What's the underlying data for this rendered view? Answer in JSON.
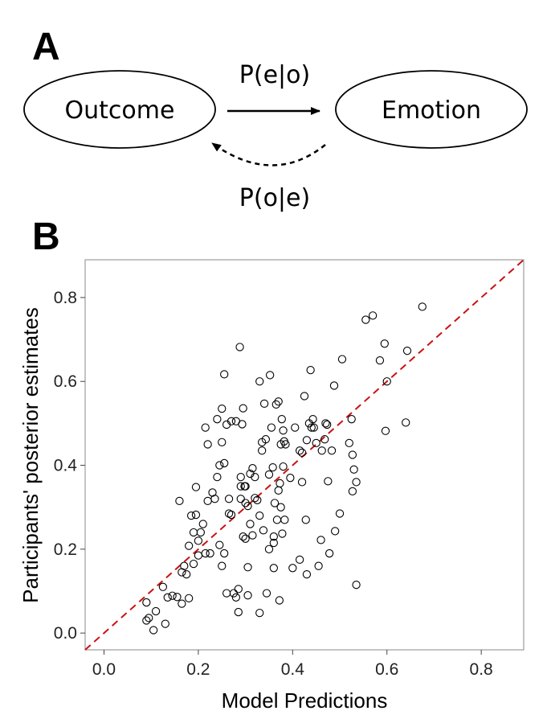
{
  "panel_a": {
    "letter": "A",
    "nodes": {
      "outcome": "Outcome",
      "emotion": "Emotion"
    },
    "edges": {
      "forward": "P(e|o)",
      "backward": "P(o|e)"
    }
  },
  "panel_b": {
    "letter": "B"
  },
  "colors": {
    "ideal_line": "#cc1111",
    "points": "#000000",
    "frame": "#888888"
  },
  "chart_data": {
    "type": "scatter",
    "title": "",
    "xlabel": "Model Predictions",
    "ylabel": "Participants' posterior estimates",
    "xlim": [
      -0.04,
      0.89
    ],
    "ylim": [
      -0.04,
      0.89
    ],
    "xticks": [
      "0.0",
      "0.2",
      "0.4",
      "0.6",
      "0.8"
    ],
    "yticks": [
      "0.0",
      "0.2",
      "0.4",
      "0.6",
      "0.8"
    ],
    "reference_line": {
      "style": "dashed",
      "slope": 1,
      "intercept": 0
    },
    "grid": false,
    "points": [
      {
        "x": 0.09,
        "y": 0.073
      },
      {
        "x": 0.09,
        "y": 0.03
      },
      {
        "x": 0.095,
        "y": 0.036
      },
      {
        "x": 0.105,
        "y": 0.007
      },
      {
        "x": 0.11,
        "y": 0.052
      },
      {
        "x": 0.125,
        "y": 0.11
      },
      {
        "x": 0.13,
        "y": 0.022
      },
      {
        "x": 0.135,
        "y": 0.085
      },
      {
        "x": 0.145,
        "y": 0.089
      },
      {
        "x": 0.155,
        "y": 0.086
      },
      {
        "x": 0.16,
        "y": 0.315
      },
      {
        "x": 0.165,
        "y": 0.145
      },
      {
        "x": 0.165,
        "y": 0.07
      },
      {
        "x": 0.17,
        "y": 0.16
      },
      {
        "x": 0.175,
        "y": 0.14
      },
      {
        "x": 0.18,
        "y": 0.208
      },
      {
        "x": 0.18,
        "y": 0.083
      },
      {
        "x": 0.185,
        "y": 0.28
      },
      {
        "x": 0.19,
        "y": 0.165
      },
      {
        "x": 0.19,
        "y": 0.24
      },
      {
        "x": 0.195,
        "y": 0.348
      },
      {
        "x": 0.195,
        "y": 0.282
      },
      {
        "x": 0.2,
        "y": 0.22
      },
      {
        "x": 0.2,
        "y": 0.185
      },
      {
        "x": 0.205,
        "y": 0.24
      },
      {
        "x": 0.21,
        "y": 0.26
      },
      {
        "x": 0.215,
        "y": 0.49
      },
      {
        "x": 0.215,
        "y": 0.19
      },
      {
        "x": 0.22,
        "y": 0.45
      },
      {
        "x": 0.22,
        "y": 0.315
      },
      {
        "x": 0.225,
        "y": 0.19
      },
      {
        "x": 0.23,
        "y": 0.335
      },
      {
        "x": 0.235,
        "y": 0.32
      },
      {
        "x": 0.24,
        "y": 0.51
      },
      {
        "x": 0.24,
        "y": 0.372
      },
      {
        "x": 0.245,
        "y": 0.4
      },
      {
        "x": 0.245,
        "y": 0.21
      },
      {
        "x": 0.25,
        "y": 0.16
      },
      {
        "x": 0.25,
        "y": 0.535
      },
      {
        "x": 0.25,
        "y": 0.455
      },
      {
        "x": 0.255,
        "y": 0.617
      },
      {
        "x": 0.255,
        "y": 0.405
      },
      {
        "x": 0.255,
        "y": 0.19
      },
      {
        "x": 0.26,
        "y": 0.095
      },
      {
        "x": 0.26,
        "y": 0.497
      },
      {
        "x": 0.265,
        "y": 0.32
      },
      {
        "x": 0.265,
        "y": 0.285
      },
      {
        "x": 0.27,
        "y": 0.505
      },
      {
        "x": 0.27,
        "y": 0.282
      },
      {
        "x": 0.275,
        "y": 0.095
      },
      {
        "x": 0.28,
        "y": 0.505
      },
      {
        "x": 0.28,
        "y": 0.085
      },
      {
        "x": 0.285,
        "y": 0.105
      },
      {
        "x": 0.285,
        "y": 0.05
      },
      {
        "x": 0.288,
        "y": 0.682
      },
      {
        "x": 0.29,
        "y": 0.372
      },
      {
        "x": 0.29,
        "y": 0.35
      },
      {
        "x": 0.29,
        "y": 0.32
      },
      {
        "x": 0.293,
        "y": 0.498
      },
      {
        "x": 0.295,
        "y": 0.23
      },
      {
        "x": 0.295,
        "y": 0.536
      },
      {
        "x": 0.298,
        "y": 0.35
      },
      {
        "x": 0.3,
        "y": 0.35
      },
      {
        "x": 0.3,
        "y": 0.225
      },
      {
        "x": 0.3,
        "y": 0.31
      },
      {
        "x": 0.305,
        "y": 0.09
      },
      {
        "x": 0.305,
        "y": 0.303
      },
      {
        "x": 0.305,
        "y": 0.157
      },
      {
        "x": 0.31,
        "y": 0.38
      },
      {
        "x": 0.31,
        "y": 0.26
      },
      {
        "x": 0.315,
        "y": 0.393
      },
      {
        "x": 0.315,
        "y": 0.233
      },
      {
        "x": 0.32,
        "y": 0.372
      },
      {
        "x": 0.32,
        "y": 0.322
      },
      {
        "x": 0.325,
        "y": 0.317
      },
      {
        "x": 0.33,
        "y": 0.28
      },
      {
        "x": 0.33,
        "y": 0.048
      },
      {
        "x": 0.33,
        "y": 0.6
      },
      {
        "x": 0.335,
        "y": 0.455
      },
      {
        "x": 0.335,
        "y": 0.435
      },
      {
        "x": 0.338,
        "y": 0.245
      },
      {
        "x": 0.34,
        "y": 0.547
      },
      {
        "x": 0.343,
        "y": 0.462
      },
      {
        "x": 0.345,
        "y": 0.095
      },
      {
        "x": 0.35,
        "y": 0.378
      },
      {
        "x": 0.35,
        "y": 0.2
      },
      {
        "x": 0.352,
        "y": 0.615
      },
      {
        "x": 0.355,
        "y": 0.49
      },
      {
        "x": 0.358,
        "y": 0.395
      },
      {
        "x": 0.36,
        "y": 0.23
      },
      {
        "x": 0.36,
        "y": 0.215
      },
      {
        "x": 0.36,
        "y": 0.155
      },
      {
        "x": 0.362,
        "y": 0.31
      },
      {
        "x": 0.365,
        "y": 0.545
      },
      {
        "x": 0.367,
        "y": 0.27
      },
      {
        "x": 0.37,
        "y": 0.34
      },
      {
        "x": 0.37,
        "y": 0.552
      },
      {
        "x": 0.372,
        "y": 0.078
      },
      {
        "x": 0.373,
        "y": 0.357
      },
      {
        "x": 0.375,
        "y": 0.45
      },
      {
        "x": 0.375,
        "y": 0.3
      },
      {
        "x": 0.377,
        "y": 0.51
      },
      {
        "x": 0.378,
        "y": 0.237
      },
      {
        "x": 0.38,
        "y": 0.483
      },
      {
        "x": 0.38,
        "y": 0.397
      },
      {
        "x": 0.382,
        "y": 0.457
      },
      {
        "x": 0.383,
        "y": 0.27
      },
      {
        "x": 0.385,
        "y": 0.45
      },
      {
        "x": 0.395,
        "y": 0.37
      },
      {
        "x": 0.4,
        "y": 0.155
      },
      {
        "x": 0.405,
        "y": 0.49
      },
      {
        "x": 0.415,
        "y": 0.435
      },
      {
        "x": 0.415,
        "y": 0.175
      },
      {
        "x": 0.42,
        "y": 0.36
      },
      {
        "x": 0.42,
        "y": 0.43
      },
      {
        "x": 0.425,
        "y": 0.565
      },
      {
        "x": 0.428,
        "y": 0.27
      },
      {
        "x": 0.43,
        "y": 0.14
      },
      {
        "x": 0.43,
        "y": 0.46
      },
      {
        "x": 0.435,
        "y": 0.5
      },
      {
        "x": 0.438,
        "y": 0.627
      },
      {
        "x": 0.44,
        "y": 0.49
      },
      {
        "x": 0.443,
        "y": 0.51
      },
      {
        "x": 0.445,
        "y": 0.49
      },
      {
        "x": 0.45,
        "y": 0.453
      },
      {
        "x": 0.455,
        "y": 0.16
      },
      {
        "x": 0.46,
        "y": 0.222
      },
      {
        "x": 0.462,
        "y": 0.435
      },
      {
        "x": 0.468,
        "y": 0.462
      },
      {
        "x": 0.47,
        "y": 0.5
      },
      {
        "x": 0.473,
        "y": 0.497
      },
      {
        "x": 0.475,
        "y": 0.362
      },
      {
        "x": 0.478,
        "y": 0.19
      },
      {
        "x": 0.483,
        "y": 0.435
      },
      {
        "x": 0.488,
        "y": 0.59
      },
      {
        "x": 0.49,
        "y": 0.243
      },
      {
        "x": 0.5,
        "y": 0.285
      },
      {
        "x": 0.505,
        "y": 0.653
      },
      {
        "x": 0.52,
        "y": 0.453
      },
      {
        "x": 0.525,
        "y": 0.51
      },
      {
        "x": 0.527,
        "y": 0.338
      },
      {
        "x": 0.527,
        "y": 0.425
      },
      {
        "x": 0.53,
        "y": 0.39
      },
      {
        "x": 0.535,
        "y": 0.36
      },
      {
        "x": 0.535,
        "y": 0.115
      },
      {
        "x": 0.555,
        "y": 0.747
      },
      {
        "x": 0.57,
        "y": 0.757
      },
      {
        "x": 0.585,
        "y": 0.65
      },
      {
        "x": 0.595,
        "y": 0.69
      },
      {
        "x": 0.597,
        "y": 0.482
      },
      {
        "x": 0.6,
        "y": 0.6
      },
      {
        "x": 0.64,
        "y": 0.502
      },
      {
        "x": 0.643,
        "y": 0.673
      },
      {
        "x": 0.675,
        "y": 0.778
      }
    ]
  }
}
